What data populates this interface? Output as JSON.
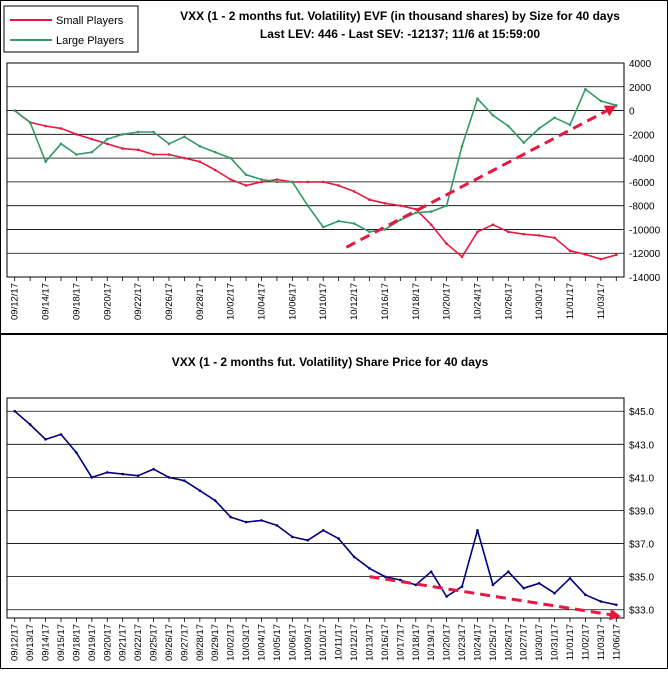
{
  "chart_data": [
    {
      "type": "line",
      "title": "VXX (1 - 2 months fut. Volatility) EVF (in thousand shares) by Size for 40 days",
      "subtitle": "Last LEV: 446 - Last SEV: -12137; 11/6 at 15:59:00",
      "ylim": [
        -14000,
        4000
      ],
      "yticks": [
        "4000",
        "2000",
        "0",
        "-2000",
        "-4000",
        "-6000",
        "-8000",
        "-10000",
        "-12000",
        "-14000"
      ],
      "grid": true,
      "legend_position": "top-left",
      "categories": [
        "09/12/17",
        "09/13/17",
        "09/14/17",
        "09/15/17",
        "09/18/17",
        "09/19/17",
        "09/20/17",
        "09/21/17",
        "09/22/17",
        "09/25/17",
        "09/26/17",
        "09/27/17",
        "09/28/17",
        "09/29/17",
        "10/02/17",
        "10/03/17",
        "10/04/17",
        "10/05/17",
        "10/06/17",
        "10/09/17",
        "10/10/17",
        "10/11/17",
        "10/12/17",
        "10/13/17",
        "10/16/17",
        "10/17/17",
        "10/18/17",
        "10/19/17",
        "10/20/17",
        "10/23/17",
        "10/24/17",
        "10/25/17",
        "10/26/17",
        "10/27/17",
        "10/30/17",
        "10/31/17",
        "11/01/17",
        "11/02/17",
        "11/03/17",
        "11/06/17"
      ],
      "x_label_step": 2,
      "series": [
        {
          "name": "Small Players",
          "color": "#e8173f",
          "values": [
            0,
            -1000,
            -1300,
            -1500,
            -2000,
            -2400,
            -2800,
            -3200,
            -3300,
            -3700,
            -3700,
            -4000,
            -4300,
            -5000,
            -5800,
            -6300,
            -6000,
            -5800,
            -6000,
            -6000,
            -6000,
            -6300,
            -6800,
            -7500,
            -7800,
            -8000,
            -8300,
            -9600,
            -11200,
            -12300,
            -10200,
            -9600,
            -10200,
            -10400,
            -10500,
            -10700,
            -11800,
            -12100,
            -12500,
            -12137
          ]
        },
        {
          "name": "Large Players",
          "color": "#339966",
          "values": [
            0,
            -1000,
            -4300,
            -2800,
            -3700,
            -3500,
            -2400,
            -2000,
            -1800,
            -1800,
            -2800,
            -2200,
            -3000,
            -3500,
            -4000,
            -5400,
            -5800,
            -6000,
            -6000,
            -8000,
            -9800,
            -9300,
            -9500,
            -10200,
            -10000,
            -9200,
            -8600,
            -8500,
            -8000,
            -3000,
            1000,
            -400,
            -1300,
            -2700,
            -1500,
            -600,
            -1200,
            1800,
            800,
            446
          ]
        }
      ],
      "trendline": {
        "color": "#e8173f",
        "from": [
          21.5,
          -11500
        ],
        "to": [
          39,
          400
        ]
      }
    },
    {
      "type": "line",
      "title": "VXX (1 - 2 months fut. Volatility) Share Price for 40 days",
      "ylim": [
        32.5,
        45.8
      ],
      "yticks": [
        "$45.0",
        "$43.0",
        "$41.0",
        "$39.0",
        "$37.0",
        "$35.0",
        "$33.0"
      ],
      "grid": true,
      "categories": [
        "09/12/17",
        "09/13/17",
        "09/14/17",
        "09/15/17",
        "09/18/17",
        "09/19/17",
        "09/20/17",
        "09/21/17",
        "09/22/17",
        "09/25/17",
        "09/26/17",
        "09/27/17",
        "09/28/17",
        "09/29/17",
        "10/02/17",
        "10/03/17",
        "10/04/17",
        "10/05/17",
        "10/06/17",
        "10/09/17",
        "10/10/17",
        "10/11/17",
        "10/12/17",
        "10/13/17",
        "10/16/17",
        "10/17/17",
        "10/18/17",
        "10/19/17",
        "10/20/17",
        "10/23/17",
        "10/24/17",
        "10/25/17",
        "10/26/17",
        "10/27/17",
        "10/30/17",
        "10/31/17",
        "11/01/17",
        "11/02/17",
        "11/03/17",
        "11/06/17"
      ],
      "x_label_step": 1,
      "series": [
        {
          "name": "",
          "color": "#000080",
          "values": [
            45.0,
            44.2,
            43.3,
            43.6,
            42.5,
            41.0,
            41.3,
            41.2,
            41.1,
            41.5,
            41.0,
            40.8,
            40.2,
            39.6,
            38.6,
            38.3,
            38.4,
            38.1,
            37.4,
            37.2,
            37.8,
            37.3,
            36.2,
            35.5,
            35.0,
            34.8,
            34.5,
            35.3,
            33.8,
            34.4,
            37.8,
            34.5,
            35.3,
            34.3,
            34.6,
            34.0,
            34.9,
            33.9,
            33.5,
            33.3
          ]
        }
      ],
      "trendline": {
        "color": "#e8173f",
        "from": [
          23,
          35.0
        ],
        "to": [
          39.3,
          32.6
        ]
      }
    }
  ]
}
